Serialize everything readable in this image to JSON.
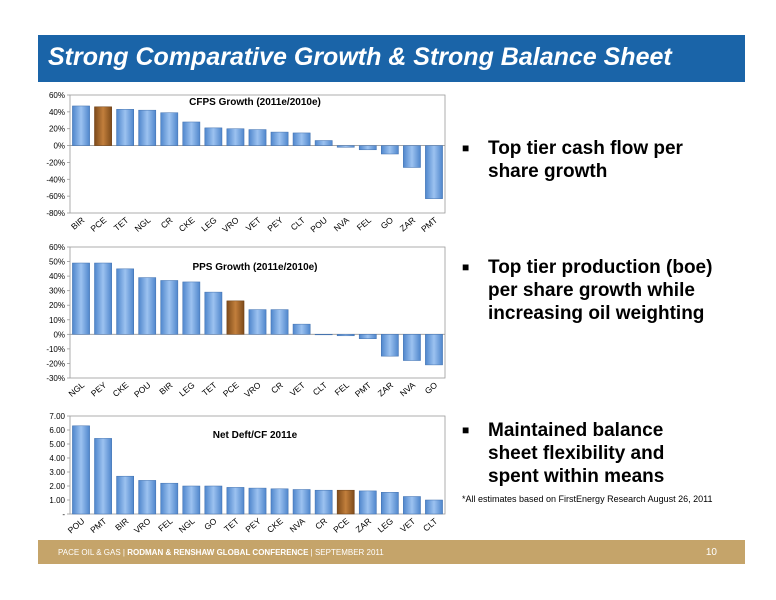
{
  "header": {
    "title": "Strong Comparative Growth & Strong Balance Sheet"
  },
  "bullets": [
    "Top tier cash flow per share growth",
    "Top tier production (boe) per share growth while increasing oil weighting",
    "Maintained balance sheet flexibility and spent within means"
  ],
  "footnote": "*All estimates based on FirstEnergy Research August 26, 2011",
  "footer": {
    "company": "PACE OIL & GAS",
    "sep1": "|",
    "conference": "RODMAN & RENSHAW GLOBAL CONFERENCE",
    "sep2": "|",
    "date": "SEPTEMBER 2011",
    "page": "10"
  },
  "colors": {
    "bar": "#6fa3e0",
    "highlight": "#a86a2c",
    "title_bar": "#1a64a8",
    "footer_bar": "#c5a46a"
  },
  "chart_data": [
    {
      "type": "bar",
      "title": "CFPS Growth (2011e/2010e)",
      "categories": [
        "BIR",
        "PCE",
        "TET",
        "NGL",
        "CR",
        "CKE",
        "LEG",
        "VRO",
        "VET",
        "PEY",
        "CLT",
        "POU",
        "NVA",
        "FEL",
        "GO",
        "ZAR",
        "PMT"
      ],
      "values": [
        47,
        46,
        43,
        42,
        39,
        28,
        21,
        20,
        19,
        16,
        15,
        6,
        -2,
        -5,
        -10,
        -26,
        -63
      ],
      "highlight": "PCE",
      "ylim": [
        -80,
        60
      ],
      "ticks": [
        "60%",
        "40%",
        "20%",
        "0%",
        "-20%",
        "-40%",
        "-60%",
        "-80%"
      ],
      "tick_values": [
        60,
        40,
        20,
        0,
        -20,
        -40,
        -60,
        -80
      ]
    },
    {
      "type": "bar",
      "title": "PPS Growth (2011e/2010e)",
      "categories": [
        "NGL",
        "PEY",
        "CKE",
        "POU",
        "BIR",
        "LEG",
        "TET",
        "PCE",
        "VRO",
        "CR",
        "VET",
        "CLT",
        "FEL",
        "PMT",
        "ZAR",
        "NVA",
        "GO"
      ],
      "values": [
        49,
        49,
        45,
        39,
        37,
        36,
        29,
        23,
        17,
        17,
        7,
        0,
        -1,
        -3,
        -15,
        -18,
        -21
      ],
      "highlight": "PCE",
      "ylim": [
        -30,
        60
      ],
      "ticks": [
        "60%",
        "50%",
        "40%",
        "30%",
        "20%",
        "10%",
        "0%",
        "-10%",
        "-20%",
        "-30%"
      ],
      "tick_values": [
        60,
        50,
        40,
        30,
        20,
        10,
        0,
        -10,
        -20,
        -30
      ]
    },
    {
      "type": "bar",
      "title": "Net Deft/CF 2011e",
      "categories": [
        "POU",
        "PMT",
        "BIR",
        "VRO",
        "FEL",
        "NGL",
        "GO",
        "TET",
        "PEY",
        "CKE",
        "NVA",
        "CR",
        "PCE",
        "ZAR",
        "LEG",
        "VET",
        "CLT"
      ],
      "values": [
        6.3,
        5.4,
        2.7,
        2.4,
        2.2,
        2.0,
        2.0,
        1.9,
        1.85,
        1.8,
        1.75,
        1.7,
        1.7,
        1.65,
        1.55,
        1.25,
        1.0
      ],
      "highlight": "PCE",
      "ylim": [
        0,
        7
      ],
      "ticks": [
        "7.00",
        "6.00",
        "5.00",
        "4.00",
        "3.00",
        "2.00",
        "1.00",
        "-"
      ],
      "tick_values": [
        7,
        6,
        5,
        4,
        3,
        2,
        1,
        0
      ]
    }
  ]
}
